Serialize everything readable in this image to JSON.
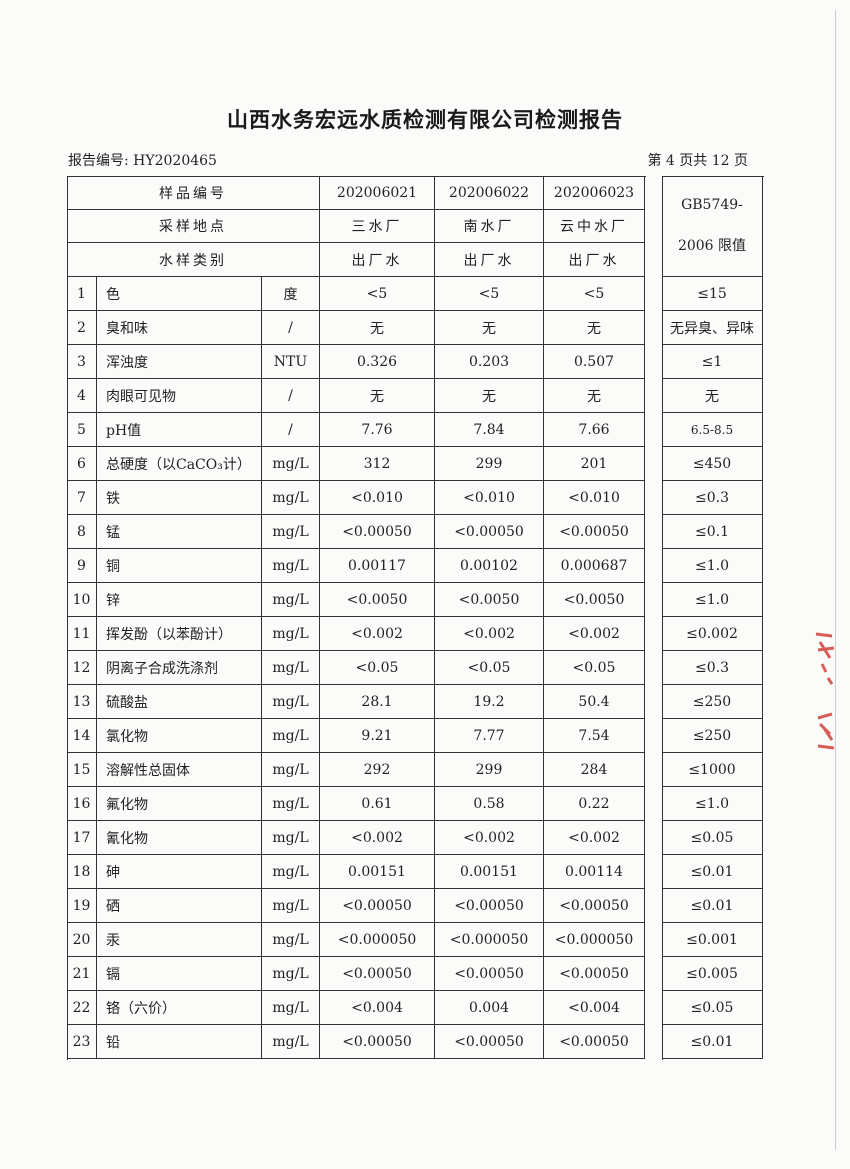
{
  "document": {
    "title": "山西水务宏远水质检测有限公司检测报告",
    "report_no": "报告编号: HY2020465",
    "page_info": "第 4 页共 12 页"
  },
  "table": {
    "header": {
      "sample_no_label": "样品编号",
      "location_label": "采样地点",
      "type_label": "水样类别",
      "samples": [
        {
          "id": "202006021",
          "location": "三水厂",
          "type": "出厂水"
        },
        {
          "id": "202006022",
          "location": "南水厂",
          "type": "出厂水"
        },
        {
          "id": "202006023",
          "location": "云中水厂",
          "type": "出厂水"
        }
      ],
      "limit_label_1": "GB5749-",
      "limit_label_2": "2006 限值"
    },
    "rows": [
      {
        "no": "1",
        "item": "色",
        "unit": "度",
        "v": [
          "<5",
          "<5",
          "<5"
        ],
        "limit": "≤15"
      },
      {
        "no": "2",
        "item": "臭和味",
        "unit": "/",
        "v": [
          "无",
          "无",
          "无"
        ],
        "limit": "无异臭、异味"
      },
      {
        "no": "3",
        "item": "浑浊度",
        "unit": "NTU",
        "v": [
          "0.326",
          "0.203",
          "0.507"
        ],
        "limit": "≤1"
      },
      {
        "no": "4",
        "item": "肉眼可见物",
        "unit": "/",
        "v": [
          "无",
          "无",
          "无"
        ],
        "limit": "无"
      },
      {
        "no": "5",
        "item": "pH值",
        "unit": "/",
        "v": [
          "7.76",
          "7.84",
          "7.66"
        ],
        "limit": "6.5-8.5"
      },
      {
        "no": "6",
        "item": "总硬度（以CaCO₃计）",
        "unit": "mg/L",
        "v": [
          "312",
          "299",
          "201"
        ],
        "limit": "≤450"
      },
      {
        "no": "7",
        "item": "铁",
        "unit": "mg/L",
        "v": [
          "<0.010",
          "<0.010",
          "<0.010"
        ],
        "limit": "≤0.3"
      },
      {
        "no": "8",
        "item": "锰",
        "unit": "mg/L",
        "v": [
          "<0.00050",
          "<0.00050",
          "<0.00050"
        ],
        "limit": "≤0.1"
      },
      {
        "no": "9",
        "item": "铜",
        "unit": "mg/L",
        "v": [
          "0.00117",
          "0.00102",
          "0.000687"
        ],
        "limit": "≤1.0"
      },
      {
        "no": "10",
        "item": "锌",
        "unit": "mg/L",
        "v": [
          "<0.0050",
          "<0.0050",
          "<0.0050"
        ],
        "limit": "≤1.0"
      },
      {
        "no": "11",
        "item": "挥发酚（以苯酚计）",
        "unit": "mg/L",
        "v": [
          "<0.002",
          "<0.002",
          "<0.002"
        ],
        "limit": "≤0.002"
      },
      {
        "no": "12",
        "item": "阴离子合成洗涤剂",
        "unit": "mg/L",
        "v": [
          "<0.05",
          "<0.05",
          "<0.05"
        ],
        "limit": "≤0.3"
      },
      {
        "no": "13",
        "item": "硫酸盐",
        "unit": "mg/L",
        "v": [
          "28.1",
          "19.2",
          "50.4"
        ],
        "limit": "≤250"
      },
      {
        "no": "14",
        "item": "氯化物",
        "unit": "mg/L",
        "v": [
          "9.21",
          "7.77",
          "7.54"
        ],
        "limit": "≤250"
      },
      {
        "no": "15",
        "item": "溶解性总固体",
        "unit": "mg/L",
        "v": [
          "292",
          "299",
          "284"
        ],
        "limit": "≤1000"
      },
      {
        "no": "16",
        "item": "氟化物",
        "unit": "mg/L",
        "v": [
          "0.61",
          "0.58",
          "0.22"
        ],
        "limit": "≤1.0"
      },
      {
        "no": "17",
        "item": "氰化物",
        "unit": "mg/L",
        "v": [
          "<0.002",
          "<0.002",
          "<0.002"
        ],
        "limit": "≤0.05"
      },
      {
        "no": "18",
        "item": "砷",
        "unit": "mg/L",
        "v": [
          "0.00151",
          "0.00151",
          "0.00114"
        ],
        "limit": "≤0.01"
      },
      {
        "no": "19",
        "item": "硒",
        "unit": "mg/L",
        "v": [
          "<0.00050",
          "<0.00050",
          "<0.00050"
        ],
        "limit": "≤0.01"
      },
      {
        "no": "20",
        "item": "汞",
        "unit": "mg/L",
        "v": [
          "<0.000050",
          "<0.000050",
          "<0.000050"
        ],
        "limit": "≤0.001"
      },
      {
        "no": "21",
        "item": "镉",
        "unit": "mg/L",
        "v": [
          "<0.00050",
          "<0.00050",
          "<0.00050"
        ],
        "limit": "≤0.005"
      },
      {
        "no": "22",
        "item": "铬（六价）",
        "unit": "mg/L",
        "v": [
          "<0.004",
          "0.004",
          "<0.004"
        ],
        "limit": "≤0.05"
      },
      {
        "no": "23",
        "item": "铅",
        "unit": "mg/L",
        "v": [
          "<0.00050",
          "<0.00050",
          "<0.00050"
        ],
        "limit": "≤0.01"
      }
    ]
  },
  "colors": {
    "stamp": "#d0352f",
    "ink": "#222222"
  }
}
